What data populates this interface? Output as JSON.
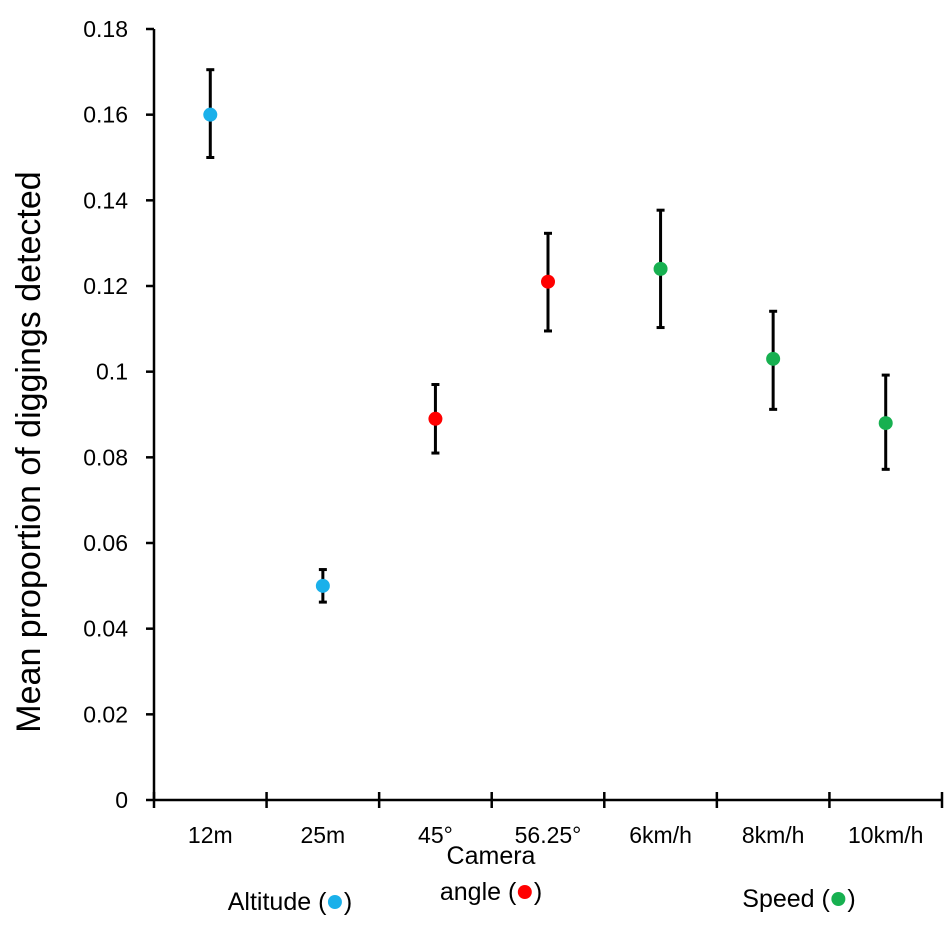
{
  "chart_data": {
    "type": "scatter",
    "ylabel": "Mean proportion of diggings detected",
    "ylim": [
      0,
      0.18
    ],
    "yticks": [
      "0",
      "0.02",
      "0.04",
      "0.06",
      "0.08",
      "0.1",
      "0.12",
      "0.14",
      "0.16",
      "0.18"
    ],
    "categories": [
      "12m",
      "25m",
      "45°",
      "56.25°",
      "6km/h",
      "8km/h",
      "10km/h"
    ],
    "points": [
      {
        "category": "12m",
        "value": 0.16,
        "err_low": 0.15,
        "err_high": 0.1705,
        "color": "#1ab0ea"
      },
      {
        "category": "25m",
        "value": 0.05,
        "err_low": 0.0462,
        "err_high": 0.0538,
        "color": "#1ab0ea"
      },
      {
        "category": "45°",
        "value": 0.089,
        "err_low": 0.081,
        "err_high": 0.097,
        "color": "#ff0000"
      },
      {
        "category": "56.25°",
        "value": 0.121,
        "err_low": 0.1095,
        "err_high": 0.1323,
        "color": "#ff0000"
      },
      {
        "category": "6km/h",
        "value": 0.124,
        "err_low": 0.1103,
        "err_high": 0.1377,
        "color": "#17b050"
      },
      {
        "category": "8km/h",
        "value": 0.103,
        "err_low": 0.0912,
        "err_high": 0.1141,
        "color": "#17b050"
      },
      {
        "category": "10km/h",
        "value": 0.088,
        "err_low": 0.0772,
        "err_high": 0.0992,
        "color": "#17b050"
      }
    ],
    "groups": [
      {
        "lines": [
          "Altitude ("
        ],
        "suffix": ")",
        "color": "#1ab0ea"
      },
      {
        "lines": [
          "Camera",
          "angle ("
        ],
        "suffix": ")",
        "color": "#ff0000"
      },
      {
        "lines": [
          "Speed ("
        ],
        "suffix": ")",
        "color": "#17b050"
      }
    ]
  }
}
